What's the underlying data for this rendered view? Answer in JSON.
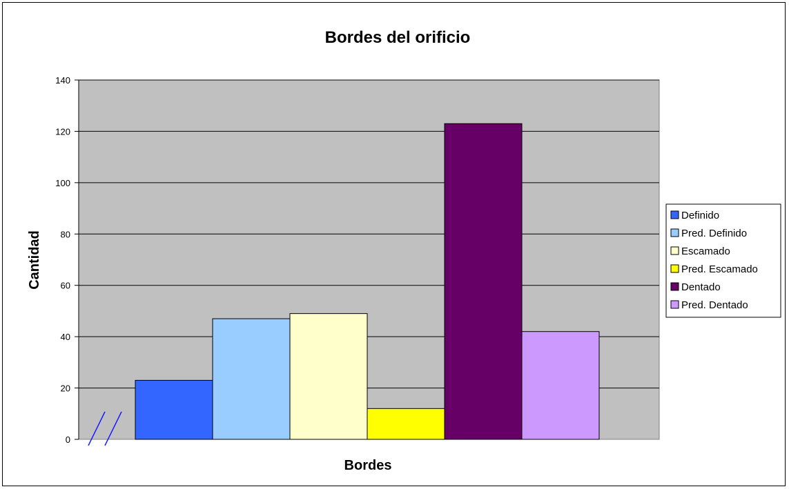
{
  "chart_data": {
    "type": "bar",
    "title": "Bordes del orificio",
    "xlabel": "Bordes",
    "ylabel": "Cantidad",
    "ylim": [
      0,
      140
    ],
    "yticks": [
      0,
      20,
      40,
      60,
      80,
      100,
      120,
      140
    ],
    "grid": true,
    "legend_position": "right",
    "plot_background": "#c0c0c0",
    "axis_break_marks": true,
    "series": [
      {
        "name": "Definido",
        "values": [
          23
        ],
        "color": "#3366ff"
      },
      {
        "name": "Pred. Definido",
        "values": [
          47
        ],
        "color": "#99ccff"
      },
      {
        "name": "Escamado",
        "values": [
          49
        ],
        "color": "#ffffcc"
      },
      {
        "name": "Pred. Escamado",
        "values": [
          12
        ],
        "color": "#ffff00"
      },
      {
        "name": "Dentado",
        "values": [
          123
        ],
        "color": "#660066"
      },
      {
        "name": "Pred. Dentado",
        "values": [
          42
        ],
        "color": "#cc99ff"
      }
    ]
  }
}
